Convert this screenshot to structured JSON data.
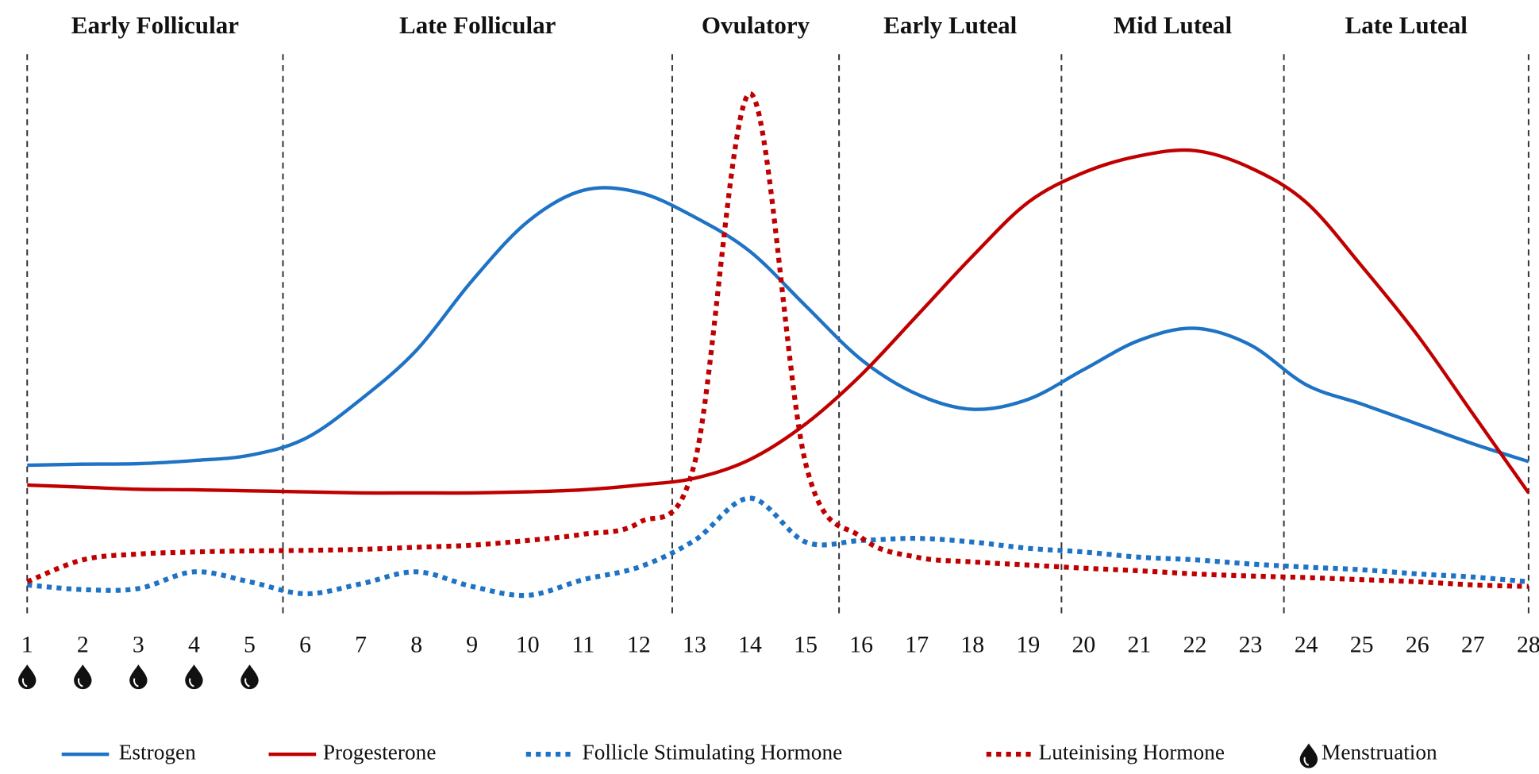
{
  "chart_data": {
    "type": "line",
    "x": [
      1,
      2,
      3,
      4,
      5,
      6,
      7,
      8,
      9,
      10,
      11,
      12,
      13,
      14,
      15,
      16,
      17,
      18,
      19,
      20,
      21,
      22,
      23,
      24,
      25,
      26,
      27,
      28
    ],
    "xlim": [
      1,
      28
    ],
    "xticks": [
      1,
      2,
      3,
      4,
      5,
      6,
      7,
      8,
      9,
      10,
      11,
      12,
      13,
      14,
      15,
      16,
      17,
      18,
      19,
      20,
      21,
      22,
      23,
      24,
      25,
      26,
      27,
      28
    ],
    "ylim": [
      0,
      100
    ],
    "phases": [
      "Early Follicular",
      "Late Follicular",
      "Ovulatory",
      "Early Luteal",
      "Mid Luteal",
      "Late Luteal"
    ],
    "phase_boundaries": [
      1,
      5.6,
      12.6,
      15.6,
      19.6,
      23.6,
      28
    ],
    "series": [
      {
        "name": "Estrogen",
        "color": "#1f73c4",
        "style": "solid",
        "values": [
          28.9,
          29.1,
          29.2,
          29.8,
          30.8,
          34.0,
          41.5,
          50.9,
          64.2,
          75.5,
          81.5,
          81.1,
          76.4,
          69.8,
          59.4,
          49.1,
          42.5,
          39.6,
          41.5,
          47.2,
          52.8,
          55.1,
          51.9,
          44.3,
          40.6,
          36.8,
          33.0,
          29.6
        ]
      },
      {
        "name": "Progesterone",
        "color": "#c00000",
        "style": "solid",
        "values": [
          25.1,
          24.7,
          24.3,
          24.2,
          24.0,
          23.8,
          23.6,
          23.6,
          23.6,
          23.8,
          24.2,
          25.1,
          26.4,
          30.0,
          36.8,
          46.2,
          57.5,
          68.9,
          79.2,
          84.9,
          88.1,
          89.1,
          85.8,
          79.2,
          67.0,
          53.8,
          38.7,
          23.6
        ]
      },
      {
        "name": "Follicle Stimulating Hormone",
        "color": "#1f73c4",
        "style": "dotted",
        "values": [
          6.0,
          5.1,
          5.3,
          8.5,
          6.6,
          4.3,
          6.2,
          8.5,
          5.7,
          4.0,
          7.0,
          9.4,
          14.5,
          22.6,
          14.2,
          14.5,
          14.9,
          14.2,
          13.0,
          12.3,
          11.3,
          10.8,
          10.0,
          9.4,
          8.9,
          8.1,
          7.5,
          6.6
        ]
      },
      {
        "name": "Luteinising Hormone",
        "color": "#c00000",
        "style": "dotted",
        "values": [
          6.6,
          10.8,
          11.9,
          12.3,
          12.5,
          12.6,
          12.8,
          13.2,
          13.6,
          14.5,
          15.7,
          17.9,
          29.2,
          100,
          29.2,
          15.1,
          11.3,
          10.4,
          9.8,
          9.2,
          8.7,
          8.1,
          7.7,
          7.4,
          7.0,
          6.6,
          6.0,
          5.7
        ]
      }
    ],
    "menstruation": {
      "name": "Menstruation",
      "x": [
        1,
        2,
        3,
        4,
        5
      ]
    }
  }
}
